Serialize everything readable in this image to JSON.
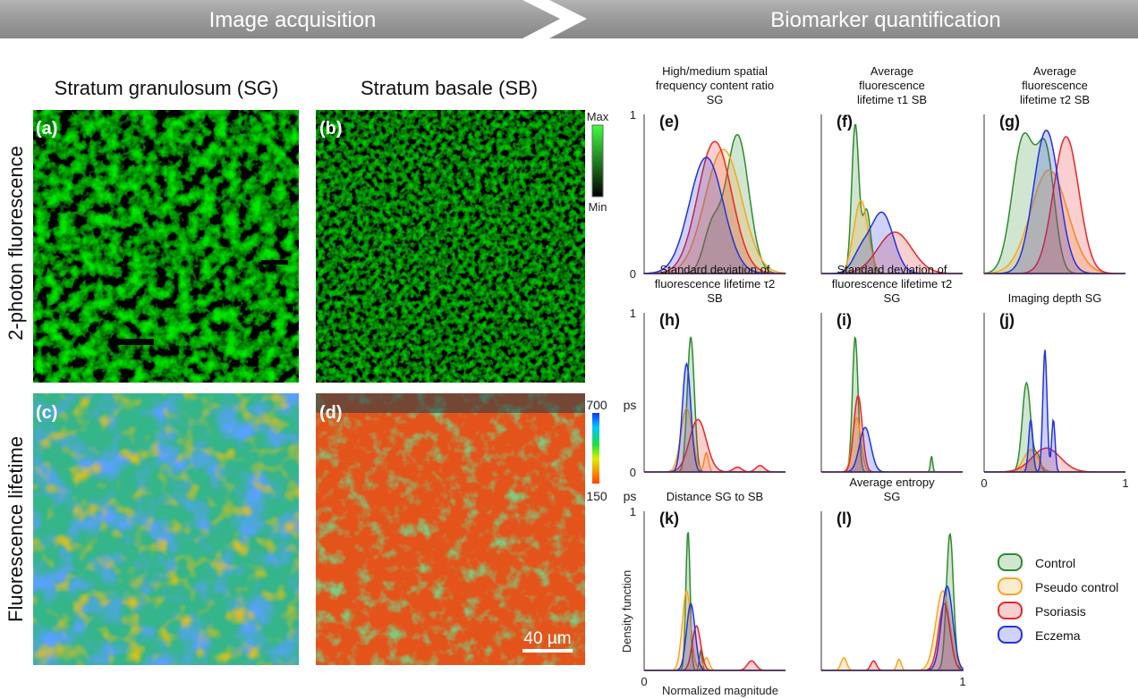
{
  "header": {
    "left": "Image acquisition",
    "right": "Biomarker quantification"
  },
  "columns": {
    "sg": "Stratum granulosum (SG)",
    "sb": "Stratum basale (SB)"
  },
  "rows": {
    "fluor": "2-photon fluorescence",
    "lifetime": "Fluorescence lifetime"
  },
  "panels": {
    "a": "(a)",
    "b": "(b)",
    "c": "(c)",
    "d": "(d)"
  },
  "green_scale": {
    "max": "Max",
    "min": "Min"
  },
  "lifetime_scale": {
    "top": "700",
    "bottom": "150",
    "unit": "ps"
  },
  "scalebar": "40 µm",
  "axes": {
    "zero": "0",
    "one": "1",
    "ylabel": "Density function",
    "xlabel": "Normalized magnitude"
  },
  "colors": {
    "Control": "#2e8b2e",
    "Pseudo control": "#f5a623",
    "Psoriasis": "#e8262b",
    "Eczema": "#2233dd"
  },
  "legend": [
    "Control",
    "Pseudo control",
    "Psoriasis",
    "Eczema"
  ],
  "chart_data": [
    {
      "id": "e",
      "label": "(e)",
      "type": "area",
      "title": [
        "High/medium spatial",
        "frequency content ratio",
        "SG"
      ],
      "xlim": [
        0,
        1
      ],
      "ylim": [
        0,
        1
      ],
      "xticks": [],
      "yticks": [
        "0",
        "1"
      ],
      "series": [
        {
          "name": "Control",
          "peaks": [
            [
              0.66,
              0.87,
              0.08
            ],
            [
              0.48,
              0.28,
              0.06
            ]
          ]
        },
        {
          "name": "Pseudo control",
          "peaks": [
            [
              0.56,
              0.78,
              0.13
            ]
          ]
        },
        {
          "name": "Psoriasis",
          "peaks": [
            [
              0.5,
              0.83,
              0.12
            ]
          ]
        },
        {
          "name": "Eczema",
          "peaks": [
            [
              0.44,
              0.73,
              0.12
            ]
          ]
        }
      ]
    },
    {
      "id": "f",
      "label": "(f)",
      "type": "area",
      "title": [
        "Average",
        "fluorescence",
        "lifetime τ1 SB"
      ],
      "xlim": [
        0,
        1
      ],
      "ylim": [
        0,
        1
      ],
      "xticks": [],
      "yticks": [],
      "series": [
        {
          "name": "Control",
          "peaks": [
            [
              0.24,
              0.93,
              0.025
            ],
            [
              0.32,
              0.4,
              0.03
            ]
          ]
        },
        {
          "name": "Pseudo control",
          "peaks": [
            [
              0.28,
              0.46,
              0.05
            ]
          ]
        },
        {
          "name": "Psoriasis",
          "peaks": [
            [
              0.52,
              0.26,
              0.12
            ]
          ]
        },
        {
          "name": "Eczema",
          "peaks": [
            [
              0.43,
              0.38,
              0.08
            ],
            [
              0.28,
              0.12,
              0.06
            ]
          ]
        }
      ]
    },
    {
      "id": "g",
      "label": "(g)",
      "type": "area",
      "title": [
        "Average",
        "fluorescence",
        "lifetime τ2 SB"
      ],
      "xlim": [
        0,
        1
      ],
      "ylim": [
        0,
        1
      ],
      "xticks": [],
      "yticks": [],
      "series": [
        {
          "name": "Control",
          "peaks": [
            [
              0.28,
              0.86,
              0.08
            ],
            [
              0.44,
              0.7,
              0.06
            ]
          ]
        },
        {
          "name": "Pseudo control",
          "peaks": [
            [
              0.46,
              0.65,
              0.13
            ]
          ]
        },
        {
          "name": "Psoriasis",
          "peaks": [
            [
              0.58,
              0.86,
              0.09
            ]
          ]
        },
        {
          "name": "Eczema",
          "peaks": [
            [
              0.44,
              0.9,
              0.09
            ]
          ]
        }
      ]
    },
    {
      "id": "h",
      "label": "(h)",
      "type": "area",
      "title": [
        "Standard deviation of",
        "fluorescence lifetime τ2",
        "SB"
      ],
      "xlim": [
        0,
        1
      ],
      "ylim": [
        0,
        1
      ],
      "xticks": [],
      "yticks": [
        "0",
        "1"
      ],
      "series": [
        {
          "name": "Control",
          "peaks": [
            [
              0.33,
              0.85,
              0.025
            ]
          ]
        },
        {
          "name": "Pseudo control",
          "peaks": [
            [
              0.3,
              0.4,
              0.04
            ],
            [
              0.44,
              0.12,
              0.015
            ]
          ]
        },
        {
          "name": "Psoriasis",
          "peaks": [
            [
              0.38,
              0.33,
              0.06
            ],
            [
              0.66,
              0.03,
              0.03
            ],
            [
              0.82,
              0.04,
              0.03
            ]
          ]
        },
        {
          "name": "Eczema",
          "peaks": [
            [
              0.3,
              0.68,
              0.03
            ]
          ]
        }
      ]
    },
    {
      "id": "i",
      "label": "(i)",
      "type": "area",
      "title": [
        "Standard deviation of",
        "fluorescence lifetime τ2",
        "SG"
      ],
      "xlim": [
        0,
        1
      ],
      "ylim": [
        0,
        1
      ],
      "xticks": [],
      "yticks": [],
      "series": [
        {
          "name": "Control",
          "peaks": [
            [
              0.24,
              0.85,
              0.02
            ],
            [
              0.78,
              0.1,
              0.008
            ]
          ]
        },
        {
          "name": "Pseudo control",
          "peaks": [
            [
              0.25,
              0.34,
              0.03
            ]
          ]
        },
        {
          "name": "Psoriasis",
          "peaks": [
            [
              0.26,
              0.48,
              0.03
            ]
          ]
        },
        {
          "name": "Eczema",
          "peaks": [
            [
              0.31,
              0.28,
              0.04
            ]
          ]
        }
      ]
    },
    {
      "id": "j",
      "label": "(j)",
      "type": "area",
      "title": [
        "Imaging depth SG"
      ],
      "xlim": [
        0,
        1
      ],
      "ylim": [
        0,
        1
      ],
      "xticks": [
        "0",
        "1"
      ],
      "yticks": [],
      "series": [
        {
          "name": "Control",
          "peaks": [
            [
              0.3,
              0.56,
              0.03
            ],
            [
              0.38,
              0.1,
              0.02
            ]
          ]
        },
        {
          "name": "Pseudo control",
          "peaks": [
            [
              0.33,
              0.14,
              0.05
            ]
          ]
        },
        {
          "name": "Psoriasis",
          "peaks": [
            [
              0.44,
              0.15,
              0.1
            ]
          ]
        },
        {
          "name": "Eczema",
          "peaks": [
            [
              0.43,
              0.77,
              0.015
            ],
            [
              0.33,
              0.33,
              0.015
            ],
            [
              0.49,
              0.33,
              0.012
            ]
          ]
        }
      ]
    },
    {
      "id": "k",
      "label": "(k)",
      "type": "area",
      "title": [
        "Distance SG to SB"
      ],
      "xlim": [
        0,
        1
      ],
      "ylim": [
        0,
        1
      ],
      "xticks": [
        "0"
      ],
      "yticks": [
        "1"
      ],
      "series": [
        {
          "name": "Control",
          "peaks": [
            [
              0.31,
              0.88,
              0.015
            ],
            [
              0.4,
              0.12,
              0.01
            ]
          ]
        },
        {
          "name": "Pseudo control",
          "peaks": [
            [
              0.3,
              0.5,
              0.03
            ],
            [
              0.44,
              0.08,
              0.02
            ]
          ]
        },
        {
          "name": "Psoriasis",
          "peaks": [
            [
              0.37,
              0.28,
              0.03
            ],
            [
              0.76,
              0.06,
              0.03
            ]
          ]
        },
        {
          "name": "Eczema",
          "peaks": [
            [
              0.33,
              0.42,
              0.03
            ]
          ]
        }
      ]
    },
    {
      "id": "l",
      "label": "(l)",
      "type": "area",
      "title": [
        "Average entropy",
        "SG"
      ],
      "xlim": [
        0,
        1
      ],
      "ylim": [
        0,
        1
      ],
      "xticks": [
        "1"
      ],
      "yticks": [],
      "series": [
        {
          "name": "Control",
          "peaks": [
            [
              0.91,
              0.86,
              0.025
            ]
          ]
        },
        {
          "name": "Pseudo control",
          "peaks": [
            [
              0.16,
              0.08,
              0.02
            ],
            [
              0.55,
              0.07,
              0.015
            ],
            [
              0.86,
              0.5,
              0.05
            ]
          ]
        },
        {
          "name": "Psoriasis",
          "peaks": [
            [
              0.37,
              0.06,
              0.02
            ],
            [
              0.87,
              0.42,
              0.04
            ]
          ]
        },
        {
          "name": "Eczema",
          "peaks": [
            [
              0.89,
              0.53,
              0.04
            ]
          ]
        }
      ]
    }
  ]
}
